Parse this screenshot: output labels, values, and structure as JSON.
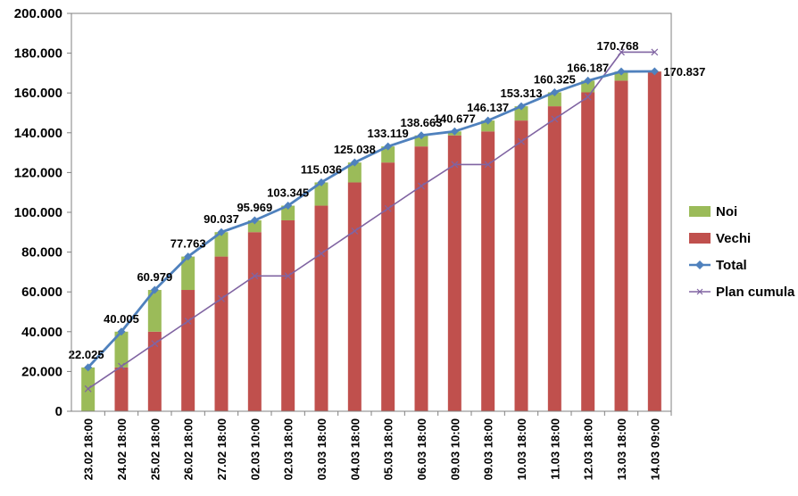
{
  "chart_data": {
    "type": "bar",
    "stacked": true,
    "categories": [
      "23.02 18:00",
      "24.02 18:00",
      "25.02 18:00",
      "26.02 18:00",
      "27.02 18:00",
      "02.03 10:00",
      "02.03 18:00",
      "03.03 18:00",
      "04.03 18:00",
      "05.03 18:00",
      "06.03 18:00",
      "09.03 10:00",
      "09.03 18:00",
      "10.03 18:00",
      "11.03 18:00",
      "12.03 18:00",
      "13.03 18:00",
      "14.03 09:00"
    ],
    "series": [
      {
        "name": "Vechi",
        "type": "bar",
        "color": "#c0504d",
        "values": [
          0,
          22025,
          40005,
          60979,
          77763,
          90037,
          95969,
          103345,
          115036,
          125038,
          133119,
          138663,
          140677,
          146137,
          153313,
          160325,
          166187,
          170768
        ]
      },
      {
        "name": "Noi",
        "type": "bar",
        "color": "#9bbb59",
        "values": [
          22025,
          17980,
          20974,
          16784,
          12274,
          5932,
          7376,
          11691,
          10002,
          8081,
          5544,
          2014,
          5460,
          7176,
          7012,
          5862,
          4581,
          69
        ]
      },
      {
        "name": "Total",
        "type": "line",
        "color": "#4f81bd",
        "marker": "diamond",
        "values": [
          22025,
          40005,
          60979,
          77763,
          90037,
          95969,
          103345,
          115036,
          125038,
          133119,
          138663,
          140677,
          146137,
          153313,
          160325,
          166187,
          170768,
          170837
        ]
      },
      {
        "name": "Plan cumula",
        "type": "line",
        "color": "#8064a2",
        "marker": "x",
        "values": [
          11300,
          22600,
          34000,
          45300,
          56600,
          68000,
          68000,
          79300,
          90600,
          101900,
          113200,
          124000,
          124000,
          135600,
          146900,
          158000,
          180500,
          180500
        ]
      }
    ],
    "data_labels": [
      "22.025",
      "40.005",
      "60.979",
      "77.763",
      "90.037",
      "95.969",
      "103.345",
      "115.036",
      "125.038",
      "133.119",
      "138.663",
      "140.677",
      "146.137",
      "153.313",
      "160.325",
      "166.187",
      "170.768",
      "170.837"
    ],
    "y_ticks": [
      "0",
      "20.000",
      "40.000",
      "60.000",
      "80.000",
      "100.000",
      "120.000",
      "140.000",
      "160.000",
      "180.000",
      "200.000"
    ],
    "ylim": [
      0,
      200000
    ],
    "grid": false,
    "legend_position": "right"
  }
}
